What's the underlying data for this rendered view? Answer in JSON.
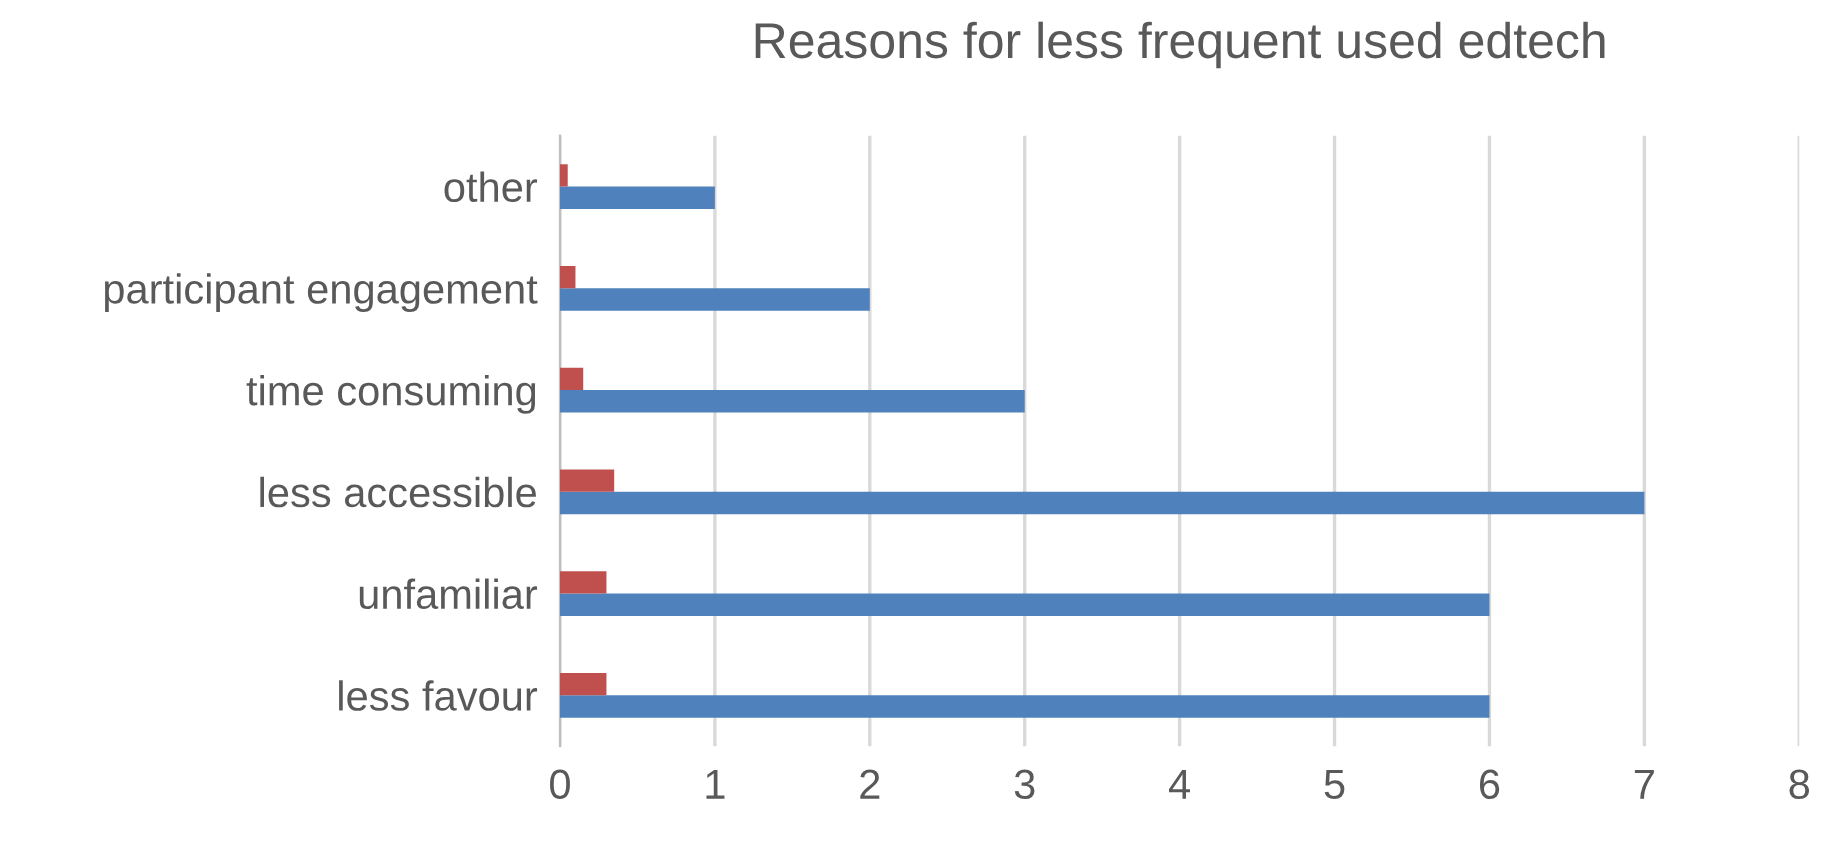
{
  "chart_data": {
    "type": "bar",
    "orientation": "horizontal",
    "title": "Reasons for less frequent used edtech",
    "categories": [
      "other",
      "participant engagement",
      "time consuming",
      "less accessible",
      "unfamiliar",
      "less favour"
    ],
    "series": [
      {
        "color": "#4f81bd",
        "values": [
          1,
          2,
          3,
          7,
          6,
          6
        ]
      },
      {
        "color": "#c0504d",
        "values": [
          0.05,
          0.1,
          0.15,
          0.35,
          0.3,
          0.3
        ]
      }
    ],
    "xlim": [
      0,
      8
    ],
    "xticks": [
      0,
      1,
      2,
      3,
      4,
      5,
      6,
      7,
      8
    ],
    "grid": "x",
    "legend": false
  }
}
